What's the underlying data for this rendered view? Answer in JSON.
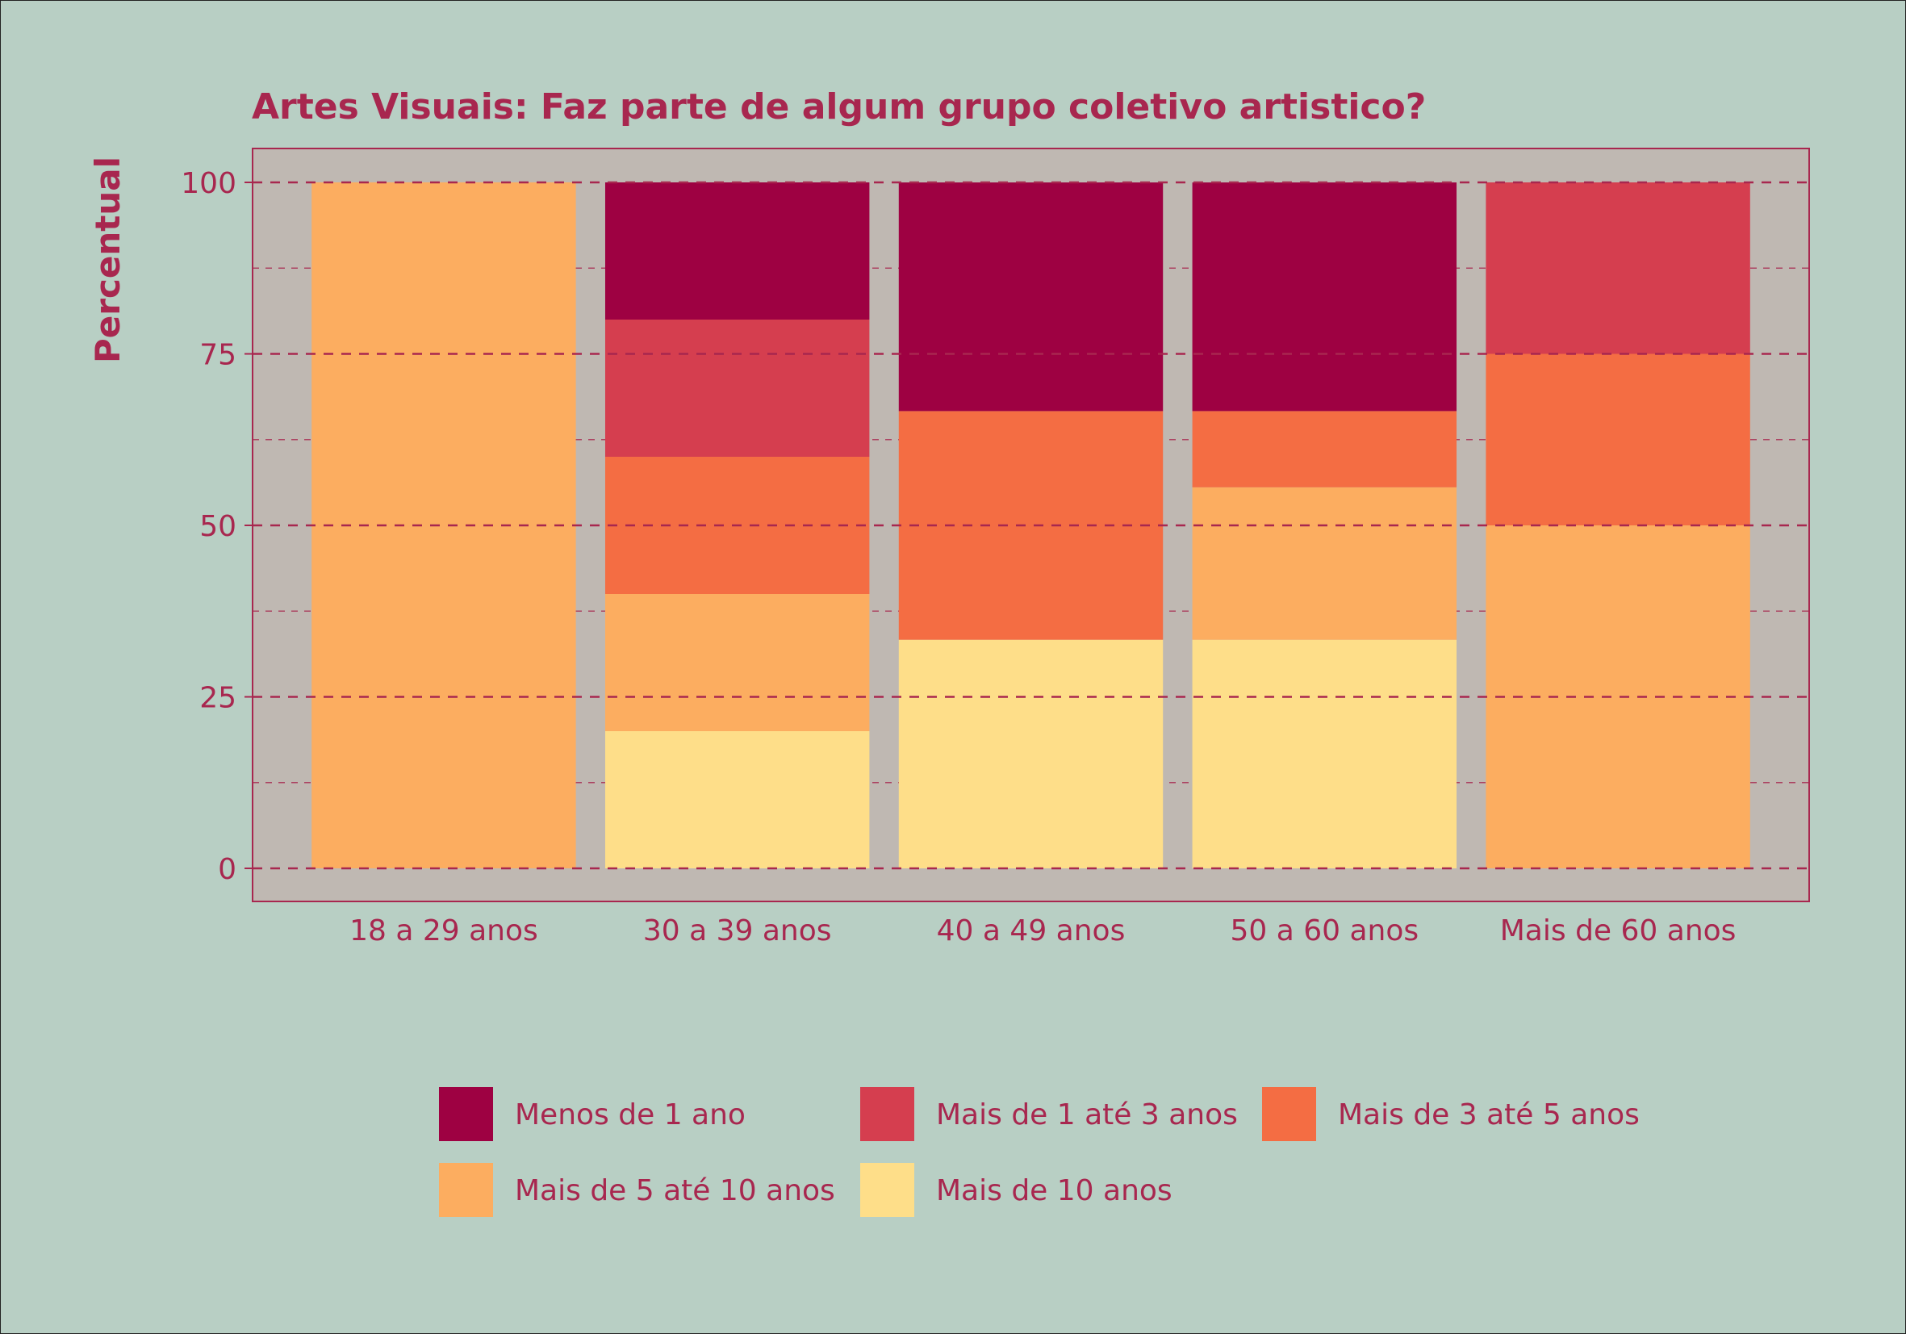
{
  "colors": {
    "background": "#b8cfc4",
    "panel": "#bfb8b2",
    "text": "#a8274f",
    "grid": "#a8274f"
  },
  "chart_data": {
    "type": "bar",
    "stacked": true,
    "title": "Artes Visuais: Faz parte de algum grupo coletivo artistico?",
    "xlabel": "",
    "ylabel": "Percentual",
    "ylim": [
      0,
      100
    ],
    "yticks": [
      0,
      25,
      50,
      75,
      100
    ],
    "grid": true,
    "legend_position": "bottom",
    "categories": [
      "18 a 29 anos",
      "30 a 39 anos",
      "40 a 49 anos",
      "50 a 60 anos",
      "Mais de 60 anos"
    ],
    "series": [
      {
        "name": "Mais de 10 anos",
        "color": "#fede89",
        "values": [
          0,
          20,
          33.33,
          33.33,
          0
        ]
      },
      {
        "name": "Mais de 5 até 10 anos",
        "color": "#fcad60",
        "values": [
          100,
          20,
          0,
          22.22,
          50
        ]
      },
      {
        "name": "Mais de 3 até 5 anos",
        "color": "#f46d43",
        "values": [
          0,
          20,
          33.33,
          11.11,
          25
        ]
      },
      {
        "name": "Mais de 1 até 3 anos",
        "color": "#d53e4f",
        "values": [
          0,
          20,
          0,
          0,
          25
        ]
      },
      {
        "name": "Menos de 1 ano",
        "color": "#9e0142",
        "values": [
          0,
          20,
          33.33,
          33.33,
          0
        ]
      }
    ],
    "legend_order": [
      "Menos de 1 ano",
      "Mais de 1 até 3 anos",
      "Mais de 3 até 5 anos",
      "Mais de 5 até 10 anos",
      "Mais de 10 anos"
    ]
  }
}
